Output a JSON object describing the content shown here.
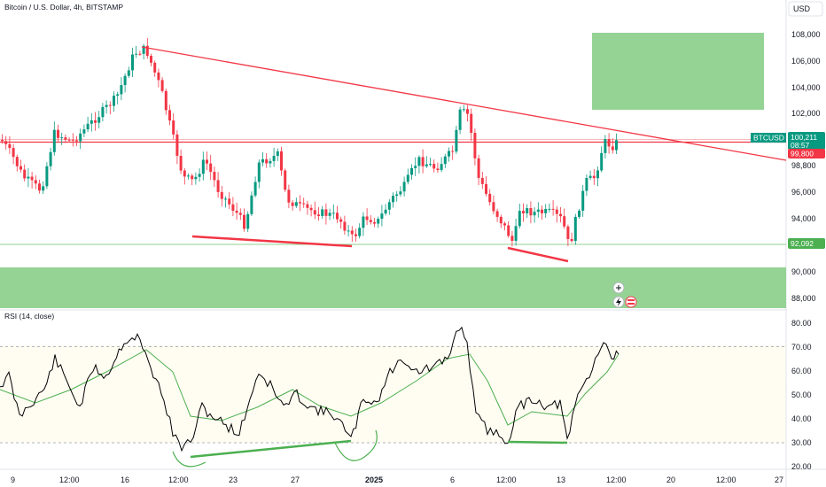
{
  "header": {
    "title": "Bitcoin / U.S. Dollar, 4h, BITSTAMP",
    "currency": "USD"
  },
  "price_axis": {
    "labels": [
      "108,000",
      "106,000",
      "104,000",
      "102,000",
      "98,800",
      "96,000",
      "94,000",
      "90,000",
      "88,000"
    ],
    "tags": {
      "symbol": "BTCUSD",
      "price": "100,211",
      "countdown": "08:57",
      "red_level": "99,800",
      "green_level": "92,092"
    }
  },
  "rsi_panel": {
    "title": "RSI (14, close)",
    "labels": [
      "80.00",
      "70.00",
      "60.00",
      "50.00",
      "40.00",
      "30.00",
      "20.00"
    ]
  },
  "time_axis": {
    "labels": [
      "9",
      "12:00",
      "16",
      "12:00",
      "23",
      "27",
      "2025",
      "6",
      "12:00",
      "13",
      "12:00",
      "20",
      "12:00",
      "27"
    ]
  },
  "colors": {
    "bull": "#089981",
    "bear": "#f23645",
    "trendline": "#f23645",
    "zone": "#8fd18f",
    "rsi_line": "#000000",
    "rsi_ma": "#4caf50",
    "support": "#4caf50"
  },
  "toolbar": {
    "plus_icon": "plus-circle-icon",
    "lightning_icon": "lightning-icon",
    "flag_icon": "flag-icon"
  }
}
